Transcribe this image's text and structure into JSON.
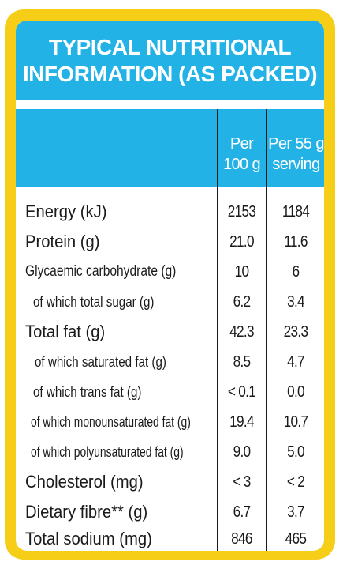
{
  "title": {
    "line1": "TYPICAL NUTRITIONAL",
    "line2": "INFORMATION (AS PACKED)"
  },
  "columns": {
    "per100": {
      "line1": "Per",
      "line2": "100 g"
    },
    "perServing": {
      "line1": "Per 55 g",
      "line2": "serving"
    }
  },
  "rows": [
    {
      "label": "Energy (kJ)",
      "per100": "2153",
      "serving": "1184"
    },
    {
      "label": "Protein (g)",
      "per100": "21.0",
      "serving": "11.6"
    },
    {
      "label": "Glycaemic carbohydrate (g)",
      "per100": "10",
      "serving": "6"
    },
    {
      "label": "of which total sugar (g)",
      "per100": "6.2",
      "serving": "3.4"
    },
    {
      "label": "Total fat (g)",
      "per100": "42.3",
      "serving": "23.3"
    },
    {
      "label": "of which saturated fat (g)",
      "per100": "8.5",
      "serving": "4.7"
    },
    {
      "label": "of which trans fat (g)",
      "per100": "< 0.1",
      "serving": "0.0"
    },
    {
      "label": "of which monounsaturated fat (g)",
      "per100": "19.4",
      "serving": "10.7"
    },
    {
      "label": "of which polyunsaturated fat (g)",
      "per100": "9.0",
      "serving": "5.0"
    },
    {
      "label": "Cholesterol (mg)",
      "per100": "< 3",
      "serving": "< 2"
    },
    {
      "label": "Dietary fibre** (g)",
      "per100": "6.7",
      "serving": "3.7"
    },
    {
      "label": "Total sodium (mg)",
      "per100": "846",
      "serving": "465"
    }
  ],
  "colors": {
    "border": "#f6cd17",
    "header": "#22b2e6",
    "text": "#1a1a1a"
  }
}
